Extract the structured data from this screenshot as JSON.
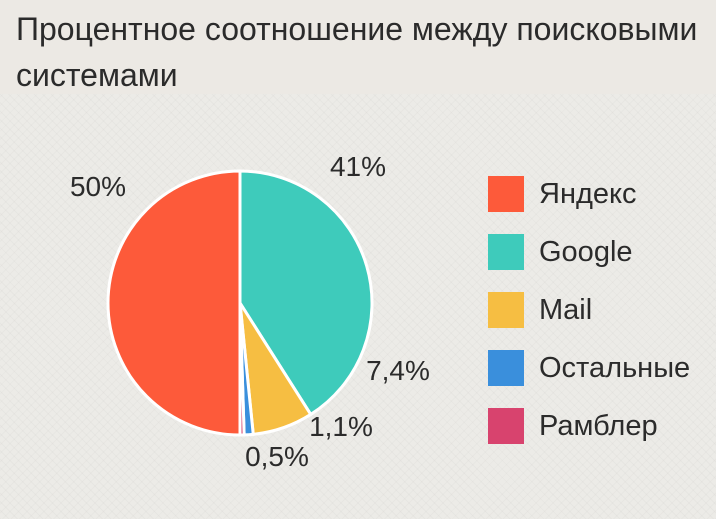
{
  "title": "Процентное соотношение между поисковыми системами",
  "chart_data": {
    "type": "pie",
    "title": "Процентное соотношение между поисковыми системами",
    "series": [
      {
        "name": "Яндекс",
        "value": 50,
        "label": "50%",
        "color": "#fd5a3a"
      },
      {
        "name": "Google",
        "value": 41,
        "label": "41%",
        "color": "#3ecbbb"
      },
      {
        "name": "Mail",
        "value": 7.4,
        "label": "7,4%",
        "color": "#f6be42"
      },
      {
        "name": "Остальные",
        "value": 1.1,
        "label": "1,1%",
        "color": "#3a8fdc"
      },
      {
        "name": "Рамблер",
        "value": 0.5,
        "label": "0,5%",
        "color": "#d8436e"
      }
    ],
    "legend_position": "right"
  }
}
